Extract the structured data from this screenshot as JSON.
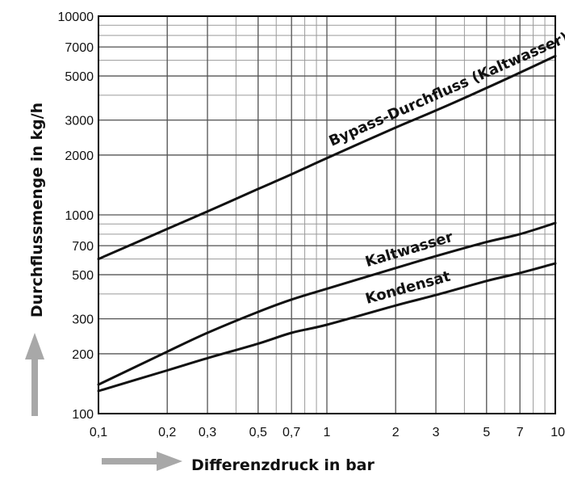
{
  "chart_data": {
    "type": "line",
    "x_scale": "log",
    "y_scale": "log",
    "xlim": [
      0.1,
      10
    ],
    "ylim": [
      100,
      10000
    ],
    "grid": true,
    "xlabel": "Differenzdruck in bar",
    "ylabel": "Durchflussmenge in kg/h",
    "x_ticks": [
      {
        "value": 0.1,
        "label": "0,1"
      },
      {
        "value": 0.2,
        "label": "0,2"
      },
      {
        "value": 0.3,
        "label": "0,3"
      },
      {
        "value": 0.5,
        "label": "0,5"
      },
      {
        "value": 0.7,
        "label": "0,7"
      },
      {
        "value": 1,
        "label": "1"
      },
      {
        "value": 2,
        "label": "2"
      },
      {
        "value": 3,
        "label": "3"
      },
      {
        "value": 5,
        "label": "5"
      },
      {
        "value": 7,
        "label": "7"
      },
      {
        "value": 10,
        "label": "10"
      }
    ],
    "y_ticks": [
      {
        "value": 100,
        "label": "100"
      },
      {
        "value": 200,
        "label": "200"
      },
      {
        "value": 300,
        "label": "300"
      },
      {
        "value": 500,
        "label": "500"
      },
      {
        "value": 700,
        "label": "700"
      },
      {
        "value": 1000,
        "label": "1000"
      },
      {
        "value": 2000,
        "label": "2000"
      },
      {
        "value": 3000,
        "label": "3000"
      },
      {
        "value": 5000,
        "label": "5000"
      },
      {
        "value": 7000,
        "label": "7000"
      },
      {
        "value": 10000,
        "label": "10000"
      }
    ],
    "series": [
      {
        "name": "Bypass-Durchfluss (Kaltwasser)",
        "x": [
          0.1,
          0.2,
          0.3,
          0.5,
          0.7,
          1,
          2,
          3,
          5,
          7,
          10
        ],
        "y": [
          600,
          850,
          1040,
          1350,
          1600,
          1930,
          2750,
          3350,
          4350,
          5200,
          6300
        ]
      },
      {
        "name": "Kaltwasser",
        "x": [
          0.1,
          0.2,
          0.3,
          0.5,
          0.7,
          1,
          2,
          3,
          5,
          7,
          10
        ],
        "y": [
          140,
          205,
          255,
          325,
          375,
          425,
          540,
          620,
          730,
          800,
          910
        ]
      },
      {
        "name": "Kondensat",
        "x": [
          0.1,
          0.2,
          0.3,
          0.5,
          0.7,
          1,
          2,
          3,
          5,
          7,
          10
        ],
        "y": [
          130,
          165,
          190,
          225,
          255,
          280,
          350,
          395,
          465,
          510,
          570
        ]
      }
    ]
  }
}
